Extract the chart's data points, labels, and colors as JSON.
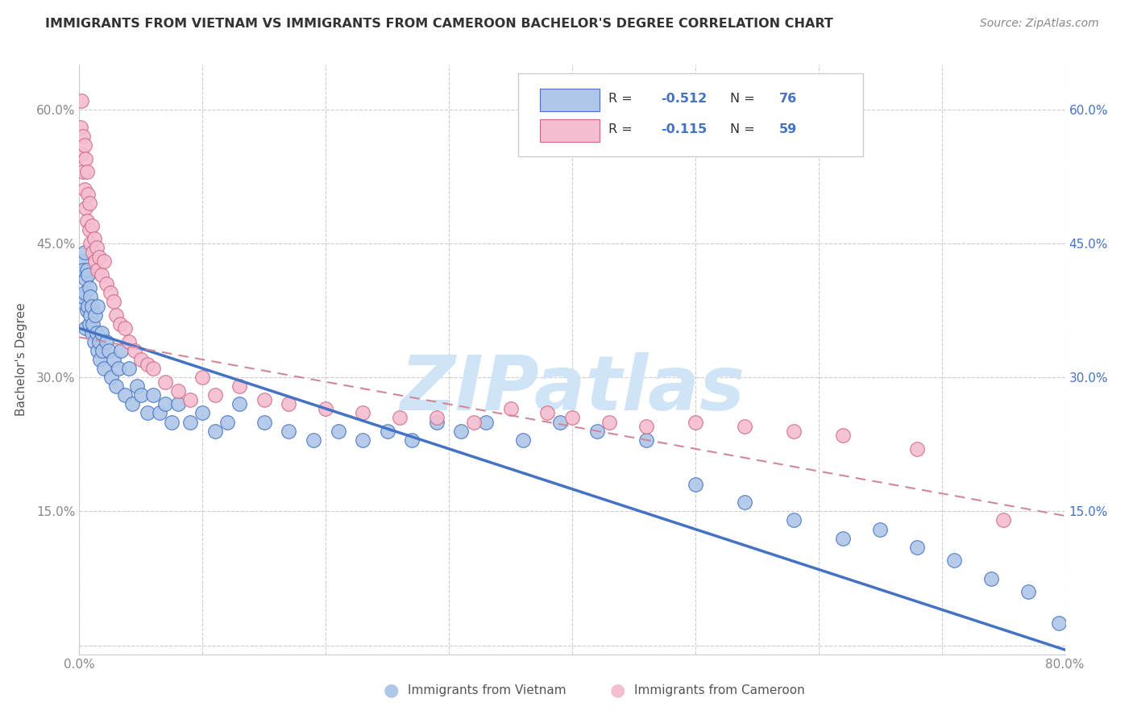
{
  "title": "IMMIGRANTS FROM VIETNAM VS IMMIGRANTS FROM CAMEROON BACHELOR'S DEGREE CORRELATION CHART",
  "source": "Source: ZipAtlas.com",
  "ylabel": "Bachelor's Degree",
  "x_bottom_label_vietnam": "Immigrants from Vietnam",
  "x_bottom_label_cameroon": "Immigrants from Cameroon",
  "xlim": [
    0.0,
    0.8
  ],
  "ylim": [
    -0.01,
    0.65
  ],
  "yticks": [
    0.0,
    0.15,
    0.3,
    0.45,
    0.6
  ],
  "xticks": [
    0.0,
    0.1,
    0.2,
    0.3,
    0.4,
    0.5,
    0.6,
    0.7,
    0.8
  ],
  "R_vietnam": -0.512,
  "N_vietnam": 76,
  "R_cameroon": -0.115,
  "N_cameroon": 59,
  "color_vietnam_fill": "#aec6e8",
  "color_vietnam_edge": "#4472C4",
  "color_cameroon_fill": "#f5bdd0",
  "color_cameroon_edge": "#d06882",
  "color_line_vietnam": "#4472C4",
  "color_line_cameroon": "#d08898",
  "watermark": "ZIPatlas",
  "watermark_color_zip": "#c5d8f0",
  "watermark_color_atlas": "#d0e4f8",
  "background_color": "#ffffff",
  "grid_color": "#cccccc",
  "left_tick_color": "#888888",
  "right_tick_color": "#4472C4",
  "line_vietnam_start_y": 0.355,
  "line_vietnam_end_y": -0.005,
  "line_cameroon_start_y": 0.345,
  "line_cameroon_end_y": 0.145
}
